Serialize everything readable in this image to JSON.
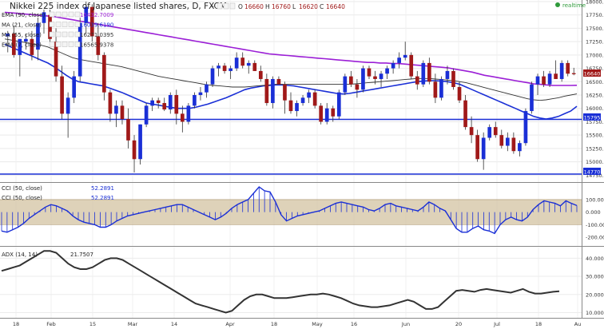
{
  "header": {
    "title": "Nikkei 225 index of Japanese listed shares, D, FXCM",
    "dash": "-",
    "ohlc": [
      {
        "k": "O",
        "v": "16660"
      },
      {
        "k": "H",
        "v": "16760"
      },
      {
        "k": "L",
        "v": "16620"
      },
      {
        "k": "C",
        "v": "16640"
      }
    ],
    "realtime": "realtime"
  },
  "indicators": [
    {
      "label": "EMA (90, close)",
      "value": "16432.7009",
      "color": "#9b1fd6"
    },
    {
      "label": "MA (21, close)",
      "value": "16039.6190",
      "color": "#1a2fd6"
    },
    {
      "label": "MA (55, close)",
      "value": "16271.0395",
      "color": "#333333"
    },
    {
      "label": "EMA (7, close)",
      "value": "16565.9378",
      "color": "#333333"
    }
  ],
  "price_tags": {
    "current": "16640",
    "upper_line": "15795",
    "lower_line": "14770"
  },
  "cci": {
    "labels": [
      "CCI (50, close)",
      "CCI (50, close)"
    ],
    "value": "52.2891"
  },
  "adx": {
    "label": "ADX (14, 14)",
    "value": "21.7507"
  },
  "colors": {
    "up": "#1a2fd6",
    "down": "#a01919",
    "ema90": "#9b1fd6",
    "ma21": "#1a2fd6",
    "ma55": "#333333",
    "band": "#d6c7a8",
    "hline": "#1a2fd6"
  },
  "chart_data": [
    {
      "type": "candlestick",
      "title": "Nikkei 225 index of Japanese listed shares, D, FXCM",
      "yticks": [
        18000,
        17750,
        17500,
        17250,
        17000,
        16750,
        16500,
        16250,
        16000,
        15750,
        15500,
        15250,
        15000,
        14750
      ],
      "ylim": [
        14650,
        18000
      ],
      "xticks": [
        "18",
        "Feb",
        "15",
        "Mar",
        "14",
        "Apr",
        "18",
        "May",
        "16",
        "Jun",
        "20",
        "Jul",
        "18",
        "Au"
      ],
      "horizontal_lines": [
        15795,
        14770
      ],
      "ohlc": [
        [
          17350,
          17450,
          17050,
          17400
        ],
        [
          17400,
          17550,
          16950,
          17000
        ],
        [
          17000,
          17300,
          16600,
          17300
        ],
        [
          17250,
          17400,
          17100,
          17300
        ],
        [
          17300,
          17450,
          16900,
          17000
        ],
        [
          17100,
          17700,
          16900,
          17600
        ],
        [
          17600,
          17850,
          17400,
          17800
        ],
        [
          17750,
          17850,
          17200,
          17300
        ],
        [
          17250,
          17500,
          16500,
          16600
        ],
        [
          16600,
          16800,
          15800,
          15900
        ],
        [
          15900,
          16300,
          15450,
          16200
        ],
        [
          16200,
          16700,
          16100,
          16600
        ],
        [
          16600,
          17700,
          16500,
          17600
        ],
        [
          17600,
          18000,
          17400,
          17900
        ],
        [
          17900,
          17950,
          17250,
          17350
        ],
        [
          17350,
          17600,
          16900,
          17000
        ],
        [
          17000,
          17050,
          16150,
          16300
        ],
        [
          16300,
          16350,
          15750,
          15900
        ],
        [
          15900,
          16150,
          15650,
          16050
        ],
        [
          16050,
          16150,
          15700,
          15800
        ],
        [
          15800,
          16000,
          15250,
          15400
        ],
        [
          15400,
          15500,
          14800,
          15050
        ],
        [
          15050,
          15700,
          14950,
          15700
        ],
        [
          15700,
          16100,
          15650,
          16050
        ],
        [
          16050,
          16200,
          15950,
          16150
        ],
        [
          16150,
          16200,
          16000,
          16100
        ],
        [
          16100,
          16200,
          15950,
          15980
        ],
        [
          15980,
          16300,
          15900,
          16250
        ],
        [
          16250,
          16350,
          15700,
          15900
        ],
        [
          15900,
          16050,
          15550,
          15750
        ],
        [
          15750,
          16100,
          15700,
          16050
        ],
        [
          16050,
          16300,
          16000,
          16250
        ],
        [
          16250,
          16400,
          16150,
          16300
        ],
        [
          16300,
          16500,
          16200,
          16450
        ],
        [
          16450,
          16800,
          16400,
          16750
        ],
        [
          16750,
          16850,
          16600,
          16800
        ],
        [
          16800,
          16850,
          16650,
          16700
        ],
        [
          16700,
          16800,
          16550,
          16750
        ],
        [
          16750,
          17050,
          16700,
          16950
        ],
        [
          16950,
          17050,
          16750,
          16800
        ],
        [
          16800,
          16900,
          16650,
          16850
        ],
        [
          16850,
          16900,
          16700,
          16700
        ],
        [
          16700,
          16800,
          16500,
          16550
        ],
        [
          16550,
          16650,
          16050,
          16100
        ],
        [
          16100,
          16600,
          16000,
          16550
        ],
        [
          16550,
          16600,
          16450,
          16450
        ],
        [
          16450,
          16500,
          15900,
          16150
        ],
        [
          16150,
          16300,
          15900,
          15950
        ],
        [
          15950,
          16150,
          15850,
          16100
        ],
        [
          16100,
          16250,
          16050,
          16200
        ],
        [
          16200,
          16350,
          16100,
          16300
        ],
        [
          16300,
          16350,
          16000,
          16050
        ],
        [
          16050,
          16100,
          15700,
          15750
        ],
        [
          15750,
          16100,
          15700,
          16000
        ],
        [
          16000,
          16050,
          15750,
          15850
        ],
        [
          15850,
          16350,
          15800,
          16300
        ],
        [
          16300,
          16650,
          16250,
          16600
        ],
        [
          16600,
          16700,
          16400,
          16450
        ],
        [
          16450,
          16550,
          16200,
          16350
        ],
        [
          16350,
          16800,
          16300,
          16750
        ],
        [
          16750,
          16800,
          16550,
          16600
        ],
        [
          16600,
          16700,
          16450,
          16550
        ],
        [
          16550,
          16700,
          16400,
          16650
        ],
        [
          16650,
          16800,
          16550,
          16750
        ],
        [
          16750,
          16900,
          16650,
          16850
        ],
        [
          16850,
          17050,
          16750,
          16950
        ],
        [
          16950,
          17250,
          16900,
          17000
        ],
        [
          17000,
          17050,
          16550,
          16600
        ],
        [
          16600,
          16700,
          16350,
          16450
        ],
        [
          16450,
          16900,
          16400,
          16850
        ],
        [
          16850,
          16950,
          16450,
          16500
        ],
        [
          16500,
          16650,
          16100,
          16200
        ],
        [
          16200,
          16600,
          16150,
          16550
        ],
        [
          16550,
          16800,
          16450,
          16700
        ],
        [
          16700,
          16750,
          16350,
          16400
        ],
        [
          16400,
          16500,
          16100,
          16150
        ],
        [
          16150,
          16250,
          15600,
          15650
        ],
        [
          15650,
          15850,
          15350,
          15500
        ],
        [
          15500,
          15600,
          15000,
          15050
        ],
        [
          15050,
          15550,
          14850,
          15450
        ],
        [
          15450,
          15700,
          15400,
          15650
        ],
        [
          15650,
          15750,
          15450,
          15500
        ],
        [
          15500,
          15600,
          15250,
          15300
        ],
        [
          15300,
          15550,
          15200,
          15450
        ],
        [
          15450,
          15550,
          15150,
          15200
        ],
        [
          15200,
          15400,
          15100,
          15350
        ],
        [
          15350,
          16000,
          15300,
          15950
        ],
        [
          15950,
          16500,
          15900,
          16450
        ],
        [
          16450,
          16650,
          16250,
          16600
        ],
        [
          16600,
          16700,
          16400,
          16450
        ],
        [
          16450,
          16700,
          16400,
          16650
        ],
        [
          16650,
          16900,
          16550,
          16550
        ],
        [
          16550,
          16900,
          16500,
          16850
        ],
        [
          16850,
          16900,
          16600,
          16650
        ],
        [
          16660,
          16760,
          16620,
          16640
        ]
      ],
      "series": [
        {
          "name": "EMA (90, close)",
          "values": [
            17800,
            17790,
            17780,
            17770,
            17760,
            17750,
            17740,
            17730,
            17720,
            17700,
            17680,
            17660,
            17640,
            17620,
            17600,
            17580,
            17560,
            17540,
            17520,
            17500,
            17480,
            17460,
            17440,
            17420,
            17400,
            17380,
            17360,
            17340,
            17320,
            17300,
            17280,
            17260,
            17240,
            17220,
            17200,
            17180,
            17160,
            17140,
            17120,
            17100,
            17080,
            17060,
            17040,
            17020,
            17010,
            17000,
            16990,
            16980,
            16970,
            16960,
            16950,
            16940,
            16930,
            16920,
            16910,
            16900,
            16890,
            16880,
            16870,
            16860,
            16860,
            16850,
            16850,
            16840,
            16840,
            16830,
            16820,
            16810,
            16800,
            16790,
            16780,
            16770,
            16760,
            16740,
            16720,
            16700,
            16680,
            16650,
            16620,
            16600,
            16580,
            16560,
            16540,
            16520,
            16500,
            16480,
            16460,
            16450,
            16440,
            16430,
            16430,
            16430,
            16430,
            16432.7
          ]
        },
        {
          "name": "MA (21, close)",
          "values": [
            17200,
            17150,
            17100,
            17050,
            17000,
            16950,
            16900,
            16850,
            16780,
            16700,
            16620,
            16550,
            16500,
            16480,
            16460,
            16440,
            16420,
            16380,
            16340,
            16300,
            16250,
            16200,
            16150,
            16100,
            16080,
            16060,
            16040,
            16020,
            16000,
            16000,
            16000,
            16020,
            16050,
            16080,
            16120,
            16160,
            16200,
            16250,
            16300,
            16350,
            16380,
            16400,
            16420,
            16430,
            16440,
            16440,
            16430,
            16420,
            16400,
            16380,
            16360,
            16340,
            16320,
            16300,
            16280,
            16270,
            16280,
            16300,
            16320,
            16340,
            16360,
            16380,
            16400,
            16420,
            16440,
            16460,
            16480,
            16500,
            16510,
            16520,
            16520,
            16510,
            16500,
            16480,
            16450,
            16400,
            16350,
            16300,
            16250,
            16200,
            16150,
            16100,
            16050,
            16000,
            15950,
            15900,
            15850,
            15820,
            15800,
            15820,
            15850,
            15900,
            15950,
            16039.6
          ]
        },
        {
          "name": "MA (55, close)",
          "values": [
            17300,
            17280,
            17260,
            17240,
            17220,
            17200,
            17180,
            17150,
            17100,
            17050,
            17000,
            16950,
            16920,
            16900,
            16880,
            16860,
            16840,
            16820,
            16800,
            16780,
            16750,
            16720,
            16690,
            16660,
            16630,
            16600,
            16580,
            16560,
            16540,
            16520,
            16500,
            16480,
            16460,
            16440,
            16430,
            16420,
            16410,
            16400,
            16400,
            16400,
            16410,
            16420,
            16430,
            16440,
            16450,
            16450,
            16450,
            16450,
            16450,
            16450,
            16450,
            16450,
            16450,
            16450,
            16450,
            16450,
            16450,
            16460,
            16470,
            16480,
            16490,
            16500,
            16510,
            16520,
            16530,
            16540,
            16550,
            16560,
            16560,
            16560,
            16550,
            16540,
            16530,
            16520,
            16500,
            16480,
            16450,
            16420,
            16390,
            16360,
            16330,
            16300,
            16270,
            16240,
            16210,
            16180,
            16160,
            16150,
            16160,
            16180,
            16200,
            16230,
            16250,
            16271
          ]
        }
      ]
    },
    {
      "type": "bar",
      "title": "CCI (50, close)",
      "yticks": [
        100,
        0,
        -100,
        -200
      ],
      "ylim": [
        -250,
        220
      ],
      "band": [
        -100,
        100
      ],
      "values": [
        -150,
        -160,
        -140,
        -120,
        -90,
        -50,
        -20,
        10,
        40,
        60,
        50,
        30,
        10,
        -30,
        -60,
        -80,
        -90,
        -100,
        -120,
        -120,
        -100,
        -70,
        -50,
        -30,
        -20,
        -10,
        0,
        10,
        20,
        30,
        40,
        50,
        60,
        60,
        40,
        20,
        0,
        -20,
        -40,
        -60,
        -40,
        -10,
        30,
        60,
        80,
        100,
        150,
        200,
        170,
        160,
        80,
        -20,
        -70,
        -50,
        -30,
        -20,
        -10,
        0,
        10,
        30,
        50,
        70,
        80,
        70,
        60,
        50,
        40,
        20,
        10,
        30,
        60,
        70,
        50,
        40,
        30,
        20,
        10,
        40,
        80,
        60,
        30,
        10,
        -60,
        -130,
        -160,
        -160,
        -130,
        -110,
        -140,
        -150,
        -170,
        -100,
        -60,
        -40,
        -60,
        -70,
        -40,
        20,
        60,
        90,
        80,
        70,
        50,
        90,
        70,
        52.3
      ]
    },
    {
      "type": "line",
      "title": "ADX (14, 14)",
      "yticks": [
        40,
        30,
        20,
        10
      ],
      "ylim": [
        8,
        45
      ],
      "values": [
        33,
        34,
        35,
        36,
        38,
        40,
        42,
        44,
        44,
        43,
        40,
        37,
        35,
        34,
        34,
        35,
        37,
        39,
        40,
        40,
        39,
        37,
        35,
        33,
        31,
        29,
        27,
        25,
        23,
        21,
        19,
        17,
        15,
        14,
        13,
        12,
        11,
        10,
        11,
        14,
        17,
        19,
        20,
        20,
        19,
        18,
        18,
        18,
        18.5,
        19,
        19.5,
        20,
        20,
        20.5,
        20,
        19,
        18,
        16.5,
        15,
        14,
        13.5,
        13,
        13,
        13.5,
        14,
        15,
        16,
        17,
        16,
        14,
        12,
        12,
        13,
        16,
        19,
        22,
        22.5,
        22,
        21.5,
        22.5,
        23,
        22.5,
        22,
        21.5,
        21,
        22,
        23,
        21.5,
        20.5,
        20.5,
        21,
        21.5,
        21.75
      ]
    }
  ]
}
